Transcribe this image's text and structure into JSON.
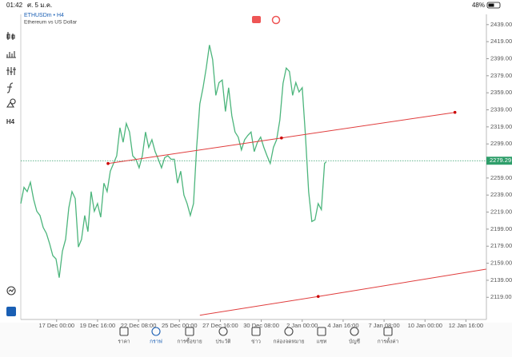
{
  "status_bar": {
    "time": "01:42",
    "date": "ศ. 5 ม.ค.",
    "battery": "48%"
  },
  "timeframe_button": "H4",
  "chart_data": {
    "type": "line",
    "title": "ETHUSDm • H4",
    "subtitle": "Ethereum vs US Dollar",
    "x": [
      0,
      1.25,
      2.5,
      3.75,
      5,
      6.25,
      7.5,
      8.75,
      10,
      11.25,
      12.5,
      13.75,
      15,
      16.25,
      17.5,
      18.75,
      20,
      21.25,
      22.5,
      23.75,
      25,
      26.25,
      27.5,
      28.75,
      30,
      31.25,
      32.5,
      33.75,
      35,
      36.25,
      37.5,
      38.75,
      40,
      41.25,
      42.5,
      43.75,
      45,
      46.25,
      47.5,
      48.75,
      50,
      51.25,
      52.5,
      53.75,
      55,
      56.25,
      57.5,
      58.75,
      60,
      61.25,
      62.5,
      63.75,
      65,
      66.25,
      67.5,
      68.75,
      70,
      71.25,
      72.5,
      73.75,
      75,
      76.25,
      77.5,
      78.75,
      80,
      81.25,
      82.5,
      83.75,
      85,
      86.25,
      87.5,
      88.75,
      90,
      91.25,
      92.5,
      93.75,
      95,
      96.25,
      97.5,
      98.75,
      100,
      101.25,
      102.5,
      103.75,
      105,
      106.25,
      107.5,
      108.75,
      110,
      111.25,
      112.5,
      113.75,
      115,
      116.25,
      117.5,
      118.75,
      119.4
    ],
    "series": [
      {
        "color": "#4cb57c",
        "values": [
          2229,
          2248,
          2243,
          2254,
          2234,
          2220,
          2215,
          2201,
          2194,
          2182,
          2168,
          2164,
          2142,
          2173,
          2187,
          2224,
          2243,
          2235,
          2178,
          2187,
          2215,
          2196,
          2243,
          2220,
          2229,
          2213,
          2253,
          2243,
          2267,
          2276,
          2285,
          2318,
          2301,
          2323,
          2313,
          2285,
          2281,
          2271,
          2285,
          2313,
          2295,
          2304,
          2290,
          2281,
          2271,
          2283,
          2285,
          2281,
          2281,
          2253,
          2267,
          2239,
          2229,
          2215,
          2229,
          2295,
          2346,
          2365,
          2388,
          2415,
          2398,
          2356,
          2371,
          2374,
          2337,
          2365,
          2332,
          2313,
          2307,
          2292,
          2304,
          2309,
          2313,
          2290,
          2301,
          2307,
          2295,
          2285,
          2276,
          2295,
          2304,
          2327,
          2370,
          2388,
          2384,
          2356,
          2371,
          2360,
          2365,
          2309,
          2243,
          2208,
          2210,
          2229,
          2222,
          2276,
          2278
        ]
      }
    ],
    "trendlines": [
      {
        "color": "#e03c3c",
        "x": [
          34.1,
          101.9,
          169.7
        ],
        "values": [
          2276,
          2306,
          2336
        ]
      },
      {
        "color": "#e03c3c",
        "x": [
          70,
          116.25,
          181.9
        ],
        "values": [
          2098,
          2120,
          2152
        ]
      }
    ],
    "current_price": 2279.29,
    "current_price_color": "#2e9e6a",
    "xlim": [
      0,
      182
    ],
    "ylim": [
      2093,
      2451
    ],
    "xticks": [
      {
        "value": 14,
        "label": "17 Dec 00:00"
      },
      {
        "value": 30,
        "label": "19 Dec 16:00"
      },
      {
        "value": 46,
        "label": "22 Dec 08:00"
      },
      {
        "value": 62,
        "label": "25 Dec 00:00"
      },
      {
        "value": 78,
        "label": "27 Dec 16:00"
      },
      {
        "value": 94,
        "label": "30 Dec 08:00"
      },
      {
        "value": 110,
        "label": "2 Jan 00:00"
      },
      {
        "value": 126,
        "label": "4 Jan 16:00"
      },
      {
        "value": 142,
        "label": "7 Jan 08:00"
      },
      {
        "value": 158,
        "label": "10 Jan 00:00"
      },
      {
        "value": 174,
        "label": "12 Jan 16:00"
      }
    ],
    "yticks": [
      {
        "value": 2439,
        "label": "2439.00"
      },
      {
        "value": 2419,
        "label": "2419.00"
      },
      {
        "value": 2399,
        "label": "2399.00"
      },
      {
        "value": 2379,
        "label": "2379.00"
      },
      {
        "value": 2359,
        "label": "2359.00"
      },
      {
        "value": 2339,
        "label": "2339.00"
      },
      {
        "value": 2319,
        "label": "2319.00"
      },
      {
        "value": 2299,
        "label": "2299.00"
      },
      {
        "value": 2279,
        "label": "2279.00"
      },
      {
        "value": 2259,
        "label": "2259.00"
      },
      {
        "value": 2239,
        "label": "2239.00"
      },
      {
        "value": 2219,
        "label": "2219.00"
      },
      {
        "value": 2199,
        "label": "2199.00"
      },
      {
        "value": 2179,
        "label": "2179.00"
      },
      {
        "value": 2159,
        "label": "2159.00"
      },
      {
        "value": 2139,
        "label": "2139.00"
      },
      {
        "value": 2119,
        "label": "2119.00"
      }
    ]
  },
  "nav": [
    "ราคา",
    "กราฟ",
    "การซื้อขาย",
    "ประวัติ",
    "ข่าว",
    "กล่องจดหมาย",
    "แชท",
    "บัญชี",
    "การตั้งค่า"
  ],
  "nav_active": 1
}
